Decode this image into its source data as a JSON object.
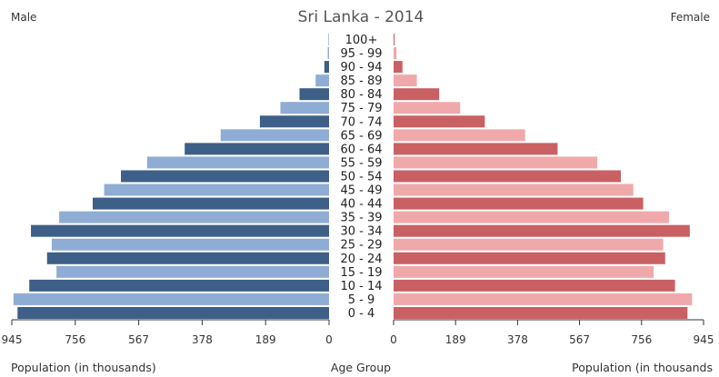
{
  "chart_data": {
    "type": "bar",
    "title": "Sri Lanka - 2014",
    "left_label": "Male",
    "right_label": "Female",
    "center_axis_label": "Age Group",
    "xlabel_left": "Population (in thousands)",
    "xlabel_right": "Population (in thousands",
    "tick_values": [
      945,
      756,
      567,
      378,
      189,
      0
    ],
    "xlim": [
      0,
      945
    ],
    "grid": false,
    "categories": [
      "0 - 4",
      "5 - 9",
      "10 - 14",
      "15 - 19",
      "20 - 24",
      "25 - 29",
      "30 - 34",
      "35 - 39",
      "40 - 44",
      "45 - 49",
      "50 - 54",
      "55 - 59",
      "60 - 64",
      "65 - 69",
      "70 - 74",
      "75 - 79",
      "80 - 84",
      "85 - 89",
      "90 - 94",
      "95 - 99",
      "100+"
    ],
    "series": [
      {
        "name": "Male",
        "values": [
          928,
          940,
          893,
          812,
          840,
          826,
          888,
          804,
          704,
          670,
          620,
          542,
          430,
          323,
          206,
          145,
          88,
          40,
          14,
          4,
          1
        ]
      },
      {
        "name": "Female",
        "values": [
          896,
          910,
          858,
          793,
          828,
          822,
          903,
          840,
          761,
          731,
          693,
          621,
          500,
          401,
          278,
          203,
          139,
          71,
          27,
          9,
          3
        ]
      }
    ],
    "colors": {
      "male_dark": "#3e5f87",
      "male_light": "#8fadd4",
      "female_dark": "#c96063",
      "female_light": "#f0a9aa",
      "text": "#333333"
    }
  }
}
